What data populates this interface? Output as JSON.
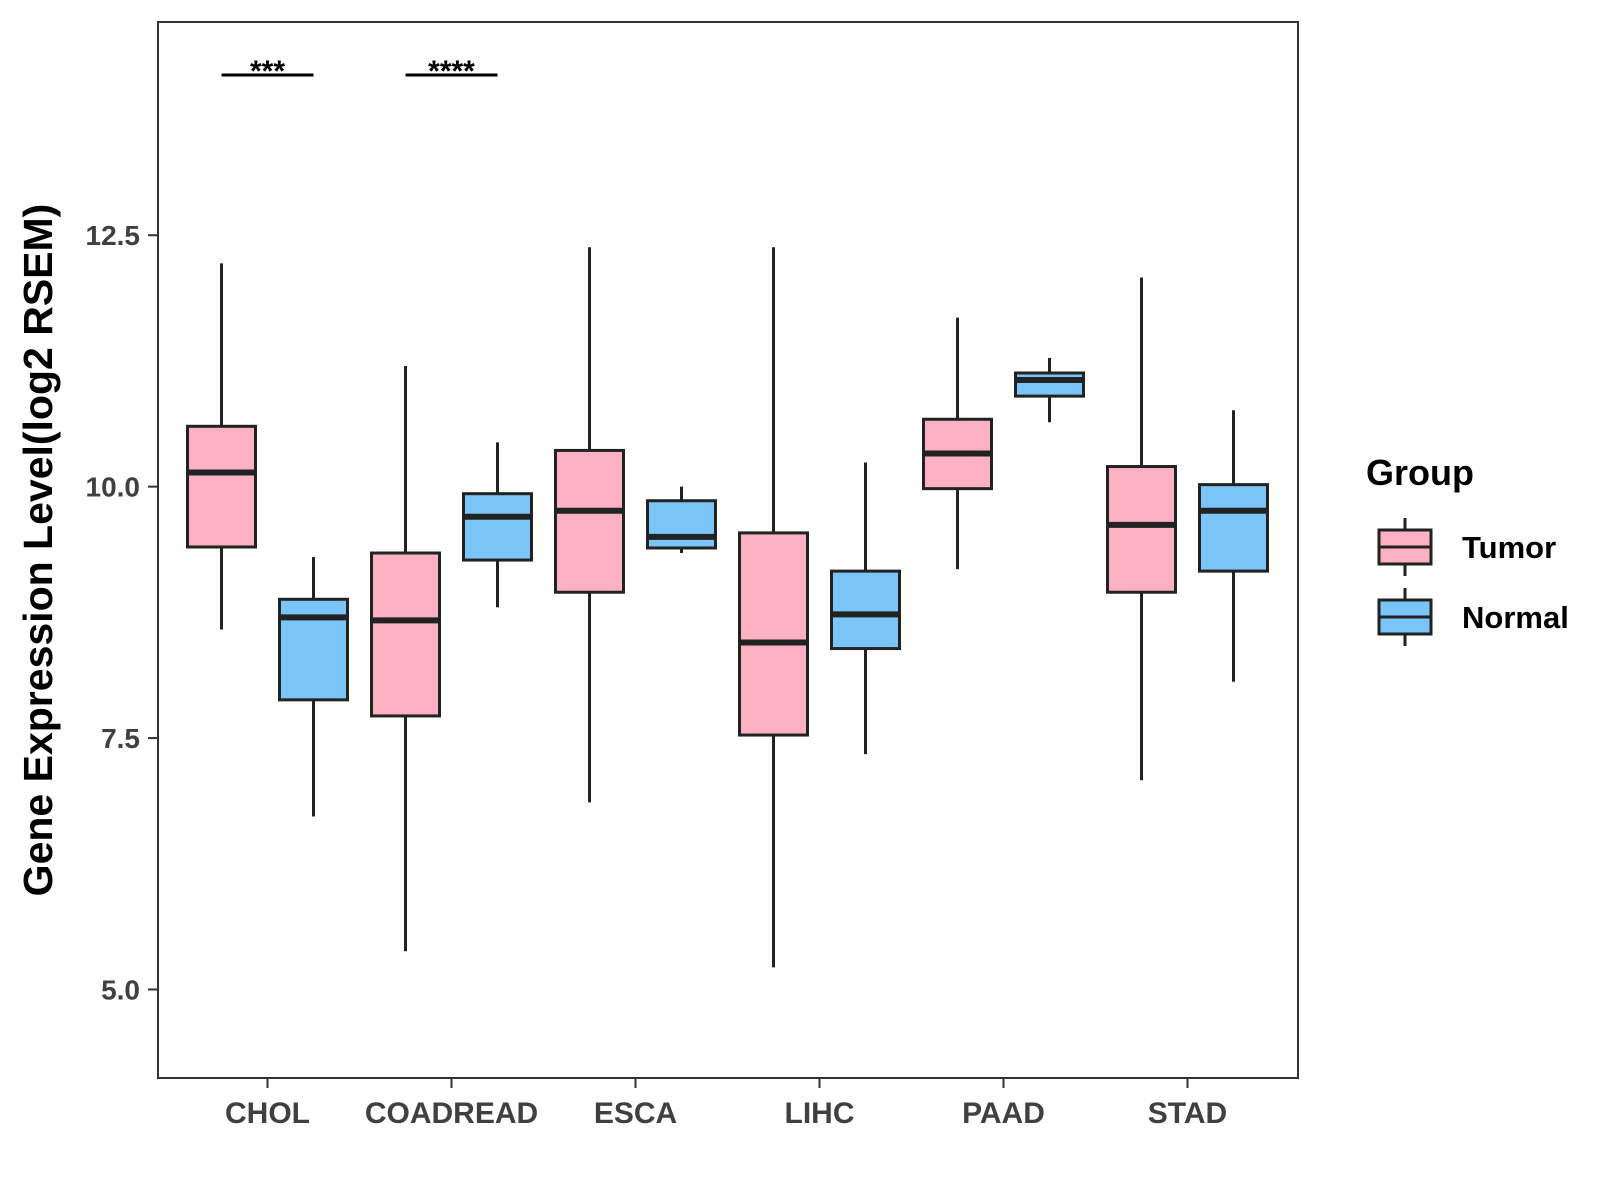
{
  "chart_data": {
    "type": "boxplot",
    "title": "",
    "xlabel": "",
    "ylabel": "Gene Expression Level(log2 RSEM)",
    "ylim": [
      4.12,
      14.62
    ],
    "yticks": [
      5.0,
      7.5,
      10.0,
      12.5
    ],
    "ytick_labels": [
      "5.0",
      "7.5",
      "10.0",
      "12.5"
    ],
    "categories": [
      "CHOL",
      "COADREAD",
      "ESCA",
      "LIHC",
      "PAAD",
      "STAD"
    ],
    "series": [
      {
        "name": "Tumor",
        "color": "#FBB1C1",
        "boxes": [
          {
            "min": 8.58,
            "q1": 9.4,
            "median": 10.14,
            "q3": 10.6,
            "max": 12.22
          },
          {
            "min": 5.38,
            "q1": 7.72,
            "median": 8.67,
            "q3": 9.34,
            "max": 11.2
          },
          {
            "min": 6.86,
            "q1": 8.95,
            "median": 9.76,
            "q3": 10.36,
            "max": 12.38
          },
          {
            "min": 5.22,
            "q1": 7.53,
            "median": 8.45,
            "q3": 9.54,
            "max": 12.38
          },
          {
            "min": 9.18,
            "q1": 9.98,
            "median": 10.33,
            "q3": 10.67,
            "max": 11.68
          },
          {
            "min": 7.08,
            "q1": 8.95,
            "median": 9.62,
            "q3": 10.2,
            "max": 12.08
          }
        ]
      },
      {
        "name": "Normal",
        "color": "#7AC4F7",
        "boxes": [
          {
            "min": 6.72,
            "q1": 7.88,
            "median": 8.7,
            "q3": 8.88,
            "max": 9.3
          },
          {
            "min": 8.8,
            "q1": 9.27,
            "median": 9.7,
            "q3": 9.93,
            "max": 10.44
          },
          {
            "min": 9.34,
            "q1": 9.39,
            "median": 9.5,
            "q3": 9.86,
            "max": 10.0
          },
          {
            "min": 7.34,
            "q1": 8.39,
            "median": 8.73,
            "q3": 9.16,
            "max": 10.24
          },
          {
            "min": 10.64,
            "q1": 10.9,
            "median": 11.06,
            "q3": 11.13,
            "max": 11.28
          },
          {
            "min": 8.06,
            "q1": 9.16,
            "median": 9.76,
            "q3": 10.02,
            "max": 10.76
          }
        ]
      }
    ],
    "significance": [
      {
        "category": "CHOL",
        "label": "***"
      },
      {
        "category": "COADREAD",
        "label": "****"
      }
    ],
    "legend": {
      "title": "Group",
      "position": "right",
      "entries": [
        "Tumor",
        "Normal"
      ]
    },
    "grid": false
  }
}
